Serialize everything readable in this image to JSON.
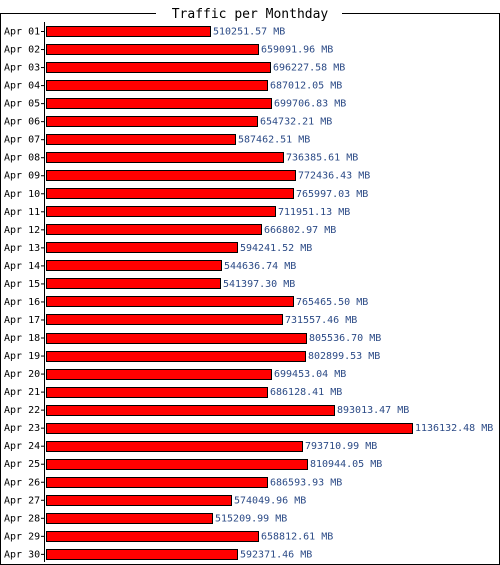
{
  "chart_data": {
    "type": "bar",
    "orientation": "horizontal",
    "title": "Traffic per Monthday",
    "unit": "MB",
    "bar_color": "#ff0000",
    "label_color": "#2b4a86",
    "categories": [
      "Apr 01",
      "Apr 02",
      "Apr 03",
      "Apr 04",
      "Apr 05",
      "Apr 06",
      "Apr 07",
      "Apr 08",
      "Apr 09",
      "Apr 10",
      "Apr 11",
      "Apr 12",
      "Apr 13",
      "Apr 14",
      "Apr 15",
      "Apr 16",
      "Apr 17",
      "Apr 18",
      "Apr 19",
      "Apr 20",
      "Apr 21",
      "Apr 22",
      "Apr 23",
      "Apr 24",
      "Apr 25",
      "Apr 26",
      "Apr 27",
      "Apr 28",
      "Apr 29",
      "Apr 30"
    ],
    "values": [
      510251.57,
      659091.96,
      696227.58,
      687012.05,
      699706.83,
      654732.21,
      587462.51,
      736385.61,
      772436.43,
      765997.03,
      711951.13,
      666802.97,
      594241.52,
      544636.74,
      541397.3,
      765465.5,
      731557.46,
      805536.7,
      802899.53,
      699453.04,
      686128.41,
      893013.47,
      1136132.48,
      793710.99,
      810944.05,
      686593.93,
      574049.96,
      515209.99,
      658812.61,
      592371.46
    ],
    "value_labels": [
      "510251.57 MB",
      "659091.96 MB",
      "696227.58 MB",
      "687012.05 MB",
      "699706.83 MB",
      "654732.21 MB",
      "587462.51 MB",
      "736385.61 MB",
      "772436.43 MB",
      "765997.03 MB",
      "711951.13 MB",
      "666802.97 MB",
      "594241.52 MB",
      "544636.74 MB",
      "541397.30 MB",
      "765465.50 MB",
      "731557.46 MB",
      "805536.70 MB",
      "802899.53 MB",
      "699453.04 MB",
      "686128.41 MB",
      "893013.47 MB",
      "1136132.48 MB",
      "793710.99 MB",
      "810944.05 MB",
      "686593.93 MB",
      "574049.96 MB",
      "515209.99 MB",
      "658812.61 MB",
      "592371.46 MB"
    ]
  }
}
